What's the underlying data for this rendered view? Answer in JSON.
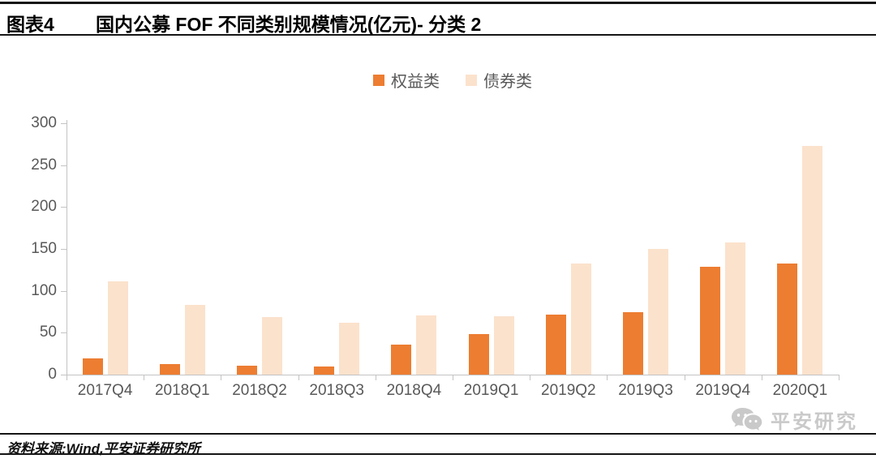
{
  "header": {
    "figure_label": "图表4",
    "title": "国内公募 FOF 不同类别规模情况(亿元)- 分类 2"
  },
  "chart_data": {
    "type": "bar",
    "title": "国内公募 FOF 不同类别规模情况(亿元)- 分类 2",
    "unit": "亿元",
    "categories": [
      "2017Q4",
      "2018Q1",
      "2018Q2",
      "2018Q3",
      "2018Q4",
      "2019Q1",
      "2019Q2",
      "2019Q3",
      "2019Q4",
      "2020Q1"
    ],
    "series": [
      {
        "key": "equity",
        "name": "权益类",
        "color": "#ED7D31",
        "values": [
          19,
          13,
          11,
          10,
          36,
          48,
          72,
          75,
          129,
          133
        ]
      },
      {
        "key": "bond",
        "name": "债券类",
        "color": "#FBE2CC",
        "values": [
          111,
          83,
          69,
          62,
          71,
          70,
          133,
          150,
          158,
          273
        ]
      }
    ],
    "xlabel": "",
    "ylabel": "",
    "ylim": [
      0,
      300
    ],
    "yticks": [
      0,
      50,
      100,
      150,
      200,
      250,
      300
    ],
    "grid": false,
    "legend_position": "top-center"
  },
  "watermark": {
    "text": "平安研究",
    "icon": "wechat-icon"
  },
  "footer": {
    "source": "资料来源:Wind,平安证券研究所"
  },
  "colors": {
    "equity": "#ED7D31",
    "bond": "#FBE2CC",
    "axis": "#c3c3c3",
    "tick_text": "#595959"
  }
}
